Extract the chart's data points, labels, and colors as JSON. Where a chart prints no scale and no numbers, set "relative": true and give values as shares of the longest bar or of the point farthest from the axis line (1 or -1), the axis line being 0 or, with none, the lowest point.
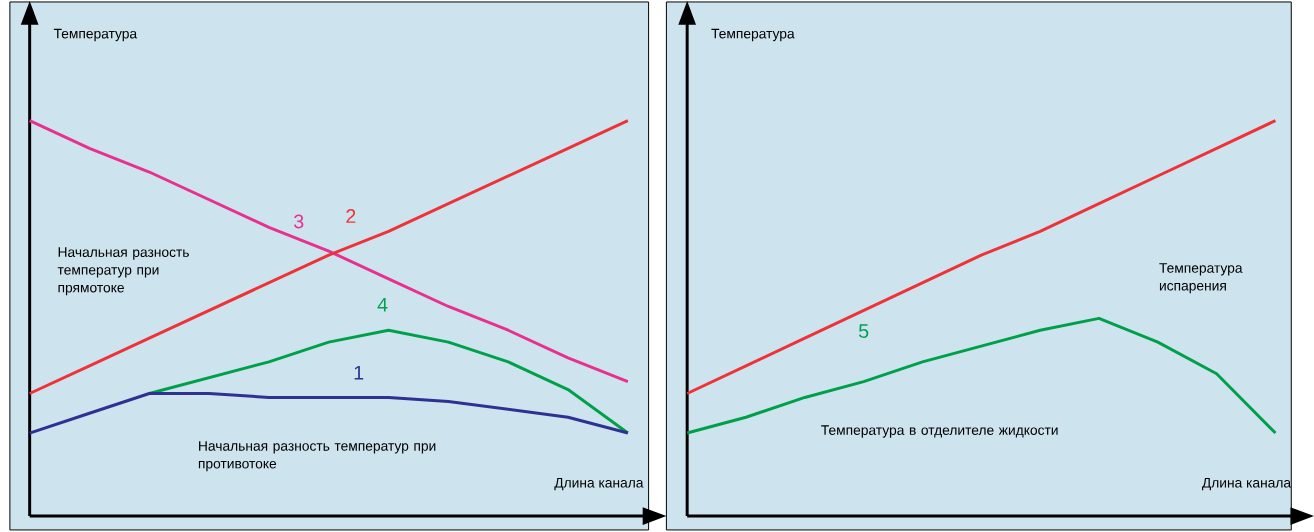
{
  "chart_data": [
    {
      "type": "line",
      "relative": true,
      "ylabel": "Температура",
      "xlabel": "Длина канала",
      "categories": [
        null,
        null,
        null,
        null,
        null,
        null,
        null,
        null,
        null,
        null,
        null
      ],
      "series": [
        {
          "name": "3",
          "color": "#e8318f",
          "values": [
            1.0,
            0.93,
            0.87,
            0.8,
            0.73,
            0.67,
            0.6,
            0.53,
            0.47,
            0.4,
            0.34
          ]
        },
        {
          "name": "2",
          "color": "#ee3338",
          "values": [
            0.31,
            0.38,
            0.45,
            0.52,
            0.59,
            0.66,
            0.72,
            0.79,
            0.86,
            0.93,
            1.0
          ]
        },
        {
          "name": "4",
          "color": "#00a04a",
          "values": [
            null,
            null,
            0.31,
            0.35,
            0.39,
            0.44,
            0.47,
            0.44,
            0.39,
            0.32,
            0.21
          ]
        },
        {
          "name": "1",
          "color": "#2e3192",
          "values": [
            0.21,
            0.26,
            0.31,
            0.31,
            0.3,
            0.3,
            0.3,
            0.29,
            0.27,
            0.25,
            0.21
          ]
        }
      ],
      "annotations": [
        "Начальная разность температур при прямотоке",
        "Начальная разность температур при противотоке"
      ]
    },
    {
      "type": "line",
      "relative": true,
      "ylabel": "Температура",
      "xlabel": "Длина канала",
      "categories": [
        null,
        null,
        null,
        null,
        null,
        null,
        null,
        null,
        null,
        null,
        null
      ],
      "series": [
        {
          "color": "#ee3338",
          "values": [
            0.31,
            0.38,
            0.45,
            0.52,
            0.59,
            0.66,
            0.72,
            0.79,
            0.86,
            0.93,
            1.0
          ]
        },
        {
          "name": "5",
          "color": "#00a04a",
          "values": [
            0.21,
            0.25,
            0.3,
            0.34,
            0.39,
            0.43,
            0.47,
            0.5,
            0.44,
            0.36,
            0.21
          ]
        }
      ],
      "annotations": [
        "Температура испарения",
        "Температура в отделителе жидкости"
      ]
    }
  ]
}
